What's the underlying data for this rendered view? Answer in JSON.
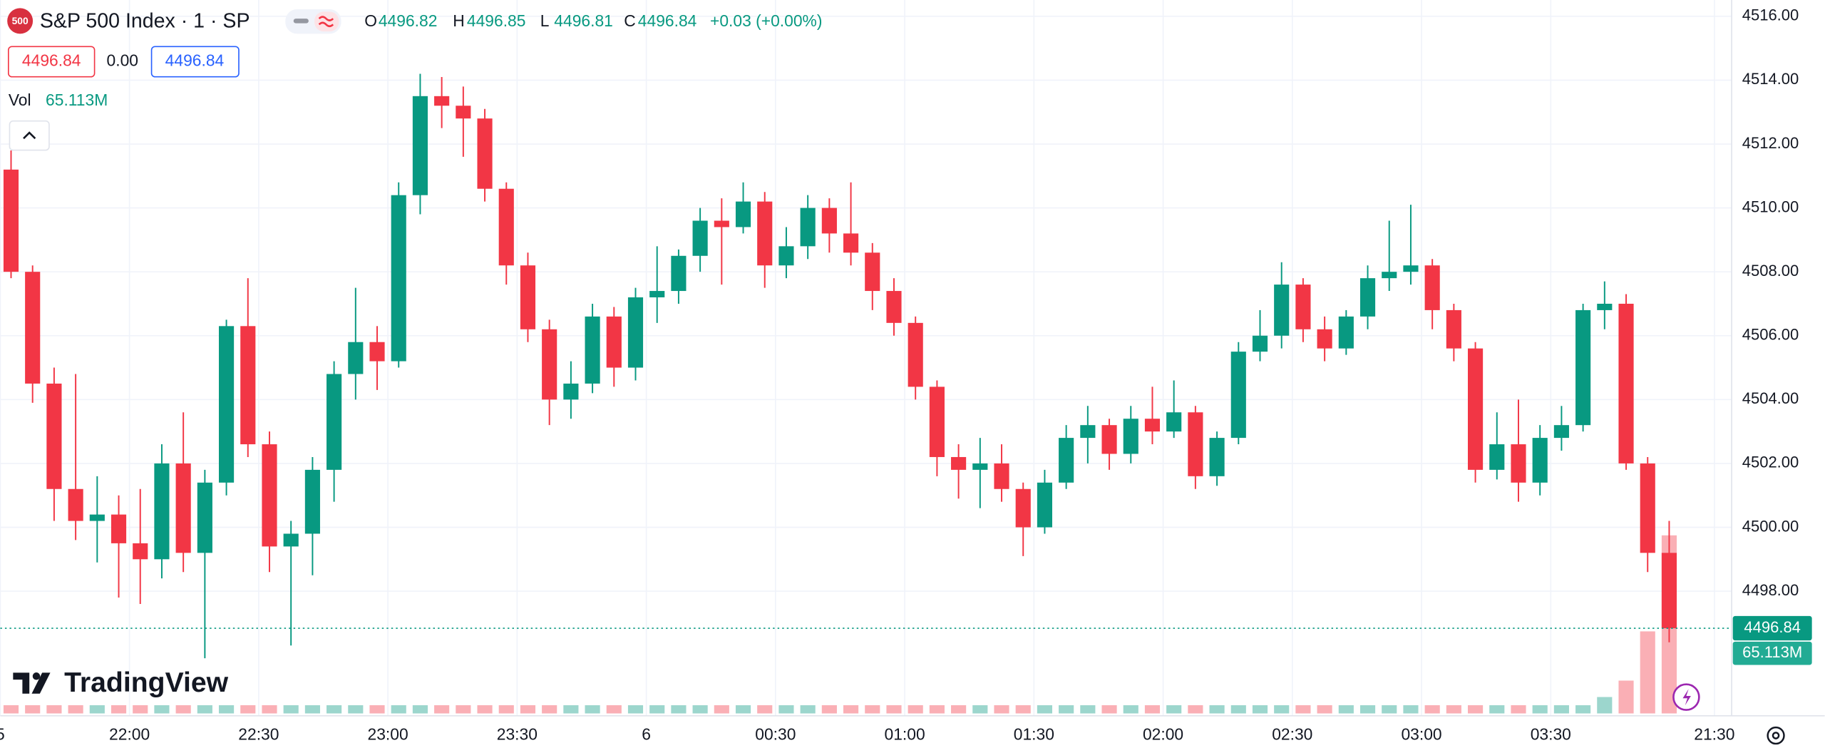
{
  "header": {
    "logo": "500",
    "symbol": "S&P 500 Index · 1 · SP",
    "ohlc": [
      {
        "label": "O",
        "value": "4496.82"
      },
      {
        "label": "H",
        "value": "4496.85"
      },
      {
        "label": "L",
        "value": "4496.81"
      },
      {
        "label": "C",
        "value": "4496.84"
      }
    ],
    "change": "+0.03 (+0.00%)",
    "bid": "4496.84",
    "spread": "0.00",
    "ask": "4496.84",
    "vol_label": "Vol",
    "vol_value": "65.113M"
  },
  "brand": "TradingView",
  "chart_data": {
    "type": "candlestick",
    "x": [
      "21:30",
      "21:35",
      "21:40",
      "21:45",
      "21:50",
      "21:55",
      "22:00",
      "22:05",
      "22:10",
      "22:15",
      "22:20",
      "22:25",
      "22:30",
      "22:35",
      "22:40",
      "22:45",
      "22:50",
      "22:55",
      "23:00",
      "23:05",
      "23:10",
      "23:15",
      "23:20",
      "23:25",
      "23:30",
      "23:35",
      "23:40",
      "23:45",
      "23:50",
      "23:55",
      "00:00",
      "00:05",
      "00:10",
      "00:15",
      "00:20",
      "00:25",
      "00:30",
      "00:35",
      "00:40",
      "00:45",
      "00:50",
      "00:55",
      "01:00",
      "01:05",
      "01:10",
      "01:15",
      "01:20",
      "01:25",
      "01:30",
      "01:35",
      "01:40",
      "01:45",
      "01:50",
      "01:55",
      "02:00",
      "02:05",
      "02:10",
      "02:15",
      "02:20",
      "02:25",
      "02:30",
      "02:35",
      "02:40",
      "02:45",
      "02:50",
      "02:55",
      "03:00",
      "03:05",
      "03:10",
      "03:15",
      "03:20",
      "03:25",
      "03:30",
      "03:35",
      "03:40",
      "03:45",
      "03:50",
      "03:55"
    ],
    "open": [
      4511.2,
      4508,
      4504.5,
      4501.2,
      4500.2,
      4500.4,
      4499.5,
      4499,
      4502,
      4499.2,
      4501.4,
      4506.3,
      4502.6,
      4499.4,
      4499.8,
      4501.8,
      4504.8,
      4505.8,
      4505.2,
      4510.4,
      4513.5,
      4513.2,
      4512.8,
      4510.6,
      4508.2,
      4506.2,
      4504,
      4504.5,
      4506.6,
      4505,
      4507.2,
      4507.4,
      4508.5,
      4509.6,
      4509.4,
      4510.2,
      4508.2,
      4508.8,
      4510,
      4509.2,
      4508.6,
      4507.4,
      4506.4,
      4504.4,
      4502.2,
      4501.8,
      4502,
      4501.2,
      4500,
      4501.4,
      4502.8,
      4503.2,
      4502.3,
      4503.4,
      4503,
      4503.6,
      4501.6,
      4502.8,
      4505.5,
      4506,
      4507.6,
      4506.2,
      4505.6,
      4506.6,
      4507.8,
      4508,
      4508.2,
      4506.8,
      4505.6,
      4501.8,
      4502.6,
      4501.4,
      4502.8,
      4503.2,
      4506.8,
      4507,
      4502,
      4499.2
    ],
    "high": [
      4511.8,
      4508.2,
      4505,
      4504.8,
      4501.6,
      4501,
      4501.2,
      4502.6,
      4503.6,
      4501.8,
      4506.5,
      4507.8,
      4503,
      4500.2,
      4502.2,
      4505.2,
      4507.5,
      4506.3,
      4510.8,
      4514.2,
      4514.1,
      4513.8,
      4513.1,
      4510.8,
      4508.6,
      4506.5,
      4505.2,
      4507,
      4506.9,
      4507.5,
      4508.8,
      4508.7,
      4510,
      4510.3,
      4510.8,
      4510.5,
      4509.4,
      4510.4,
      4510.3,
      4510.8,
      4508.9,
      4507.8,
      4506.6,
      4504.6,
      4502.6,
      4502.8,
      4502.6,
      4501.4,
      4501.8,
      4503.2,
      4503.8,
      4503.4,
      4503.8,
      4504.4,
      4504.6,
      4503.8,
      4503,
      4505.8,
      4506.8,
      4508.3,
      4507.8,
      4506.6,
      4506.8,
      4508.2,
      4509.6,
      4510.1,
      4508.4,
      4507,
      4505.8,
      4503.6,
      4504,
      4503.2,
      4503.8,
      4507,
      4507.7,
      4507.3,
      4502.2,
      4500.2
    ],
    "low": [
      4507.8,
      4503.9,
      4500.2,
      4499.6,
      4498.9,
      4497.8,
      4497.6,
      4498.4,
      4498.6,
      4495.9,
      4501,
      4502.2,
      4498.6,
      4496.3,
      4498.5,
      4500.8,
      4504,
      4504.3,
      4505,
      4509.8,
      4512.5,
      4511.6,
      4510.2,
      4507.6,
      4505.8,
      4503.2,
      4503.4,
      4504.2,
      4504.4,
      4504.6,
      4506.4,
      4507,
      4508,
      4507.6,
      4509.2,
      4507.5,
      4507.8,
      4508.4,
      4508.6,
      4508.2,
      4506.8,
      4506,
      4504,
      4501.6,
      4500.9,
      4500.6,
      4500.8,
      4499.1,
      4499.8,
      4501.2,
      4502,
      4501.8,
      4502,
      4502.6,
      4502.8,
      4501.2,
      4501.3,
      4502.6,
      4505.2,
      4505.6,
      4505.8,
      4505.2,
      4505.4,
      4506.2,
      4507.4,
      4507.6,
      4506.2,
      4505.2,
      4501.4,
      4501.5,
      4500.8,
      4501,
      4502.4,
      4503,
      4506.2,
      4501.8,
      4498.6,
      4496.4
    ],
    "close": [
      4508,
      4504.5,
      4501.2,
      4500.2,
      4500.4,
      4499.5,
      4499,
      4502,
      4499.2,
      4501.4,
      4506.3,
      4502.6,
      4499.4,
      4499.8,
      4501.8,
      4504.8,
      4505.8,
      4505.2,
      4510.4,
      4513.5,
      4513.2,
      4512.8,
      4510.6,
      4508.2,
      4506.2,
      4504,
      4504.5,
      4506.6,
      4505,
      4507.2,
      4507.4,
      4508.5,
      4509.6,
      4509.4,
      4510.2,
      4508.2,
      4508.8,
      4510,
      4509.2,
      4508.6,
      4507.4,
      4506.4,
      4504.4,
      4502.2,
      4501.8,
      4502,
      4501.2,
      4500,
      4501.4,
      4502.8,
      4503.2,
      4502.3,
      4503.4,
      4503,
      4503.6,
      4501.6,
      4502.8,
      4505.5,
      4506,
      4507.6,
      4506.2,
      4505.6,
      4506.6,
      4507.8,
      4508,
      4508.2,
      4506.8,
      4505.6,
      4501.8,
      4502.6,
      4501.4,
      4502.8,
      4503.2,
      4506.8,
      4507,
      4502,
      4499.2,
      4496.84
    ],
    "volume": [
      3,
      3,
      3,
      3,
      3,
      3,
      3,
      3,
      3,
      3,
      3,
      3,
      3,
      3,
      3,
      3,
      3,
      3,
      3,
      3,
      3,
      3,
      3,
      3,
      3,
      3,
      3,
      3,
      3,
      3,
      3,
      3,
      3,
      3,
      3,
      3,
      3,
      3,
      3,
      3,
      3,
      3,
      3,
      3,
      3,
      3,
      3,
      3,
      3,
      3,
      3,
      3,
      3,
      3,
      3,
      3,
      3,
      3,
      3,
      3,
      3,
      3,
      3,
      3,
      3,
      3,
      3,
      3,
      3,
      3,
      3,
      3,
      3,
      3,
      6,
      12,
      30,
      65.113
    ],
    "vlim": [
      0,
      100
    ],
    "up_color": "#089981",
    "down_color": "#f23645",
    "xlim": [
      "21:30",
      "04:12"
    ],
    "xticks": [
      {
        "value": "21:30",
        "label": "5"
      },
      "22:00",
      "22:30",
      "23:00",
      "23:30",
      {
        "value": "00:00",
        "label": "6"
      },
      "00:30",
      "01:00",
      "01:30",
      "02:00",
      "02:30",
      "03:00",
      "03:30",
      {
        "value": "04:08",
        "label": "21:30"
      }
    ],
    "ylim": [
      4494.1,
      4516.51
    ],
    "yticks": [
      {
        "value": 4498,
        "label": "4498.00"
      },
      {
        "value": 4500,
        "label": "4500.00"
      },
      {
        "value": 4502,
        "label": "4502.00"
      },
      {
        "value": 4504,
        "label": "4504.00"
      },
      {
        "value": 4506,
        "label": "4506.00"
      },
      {
        "value": 4508,
        "label": "4508.00"
      },
      {
        "value": 4510,
        "label": "4510.00"
      },
      {
        "value": 4512,
        "label": "4512.00"
      },
      {
        "value": 4514,
        "label": "4514.00"
      },
      {
        "value": 4516,
        "label": "4516.00"
      }
    ],
    "last_price": 4496.84,
    "price_label": "4496.84",
    "volume_label": "65.113M",
    "grid": true
  }
}
